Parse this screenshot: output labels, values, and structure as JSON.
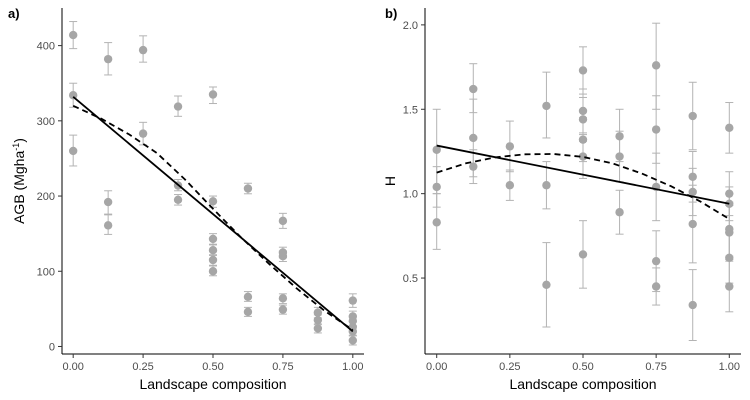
{
  "chart_data": [
    {
      "type": "scatter",
      "panel_label": "a)",
      "xlabel": "Landscape composition",
      "ylabel": "AGB (Mgha",
      "ylabel_sup": "-1",
      "ylabel_suffix": ")",
      "xlim": [
        -0.04,
        1.04
      ],
      "ylim": [
        -10,
        450
      ],
      "xticks": [
        0,
        0.25,
        0.5,
        0.75,
        1
      ],
      "xtick_labels": [
        "0.00",
        "0.25",
        "0.50",
        "0.75",
        "1.00"
      ],
      "yticks": [
        0,
        100,
        200,
        300,
        400
      ],
      "ytick_labels": [
        "0",
        "100",
        "200",
        "300",
        "400"
      ],
      "grid": false,
      "colors": {
        "points": "#a6a6a6",
        "errorbars": "#b3b3b3",
        "lines": "#000000"
      },
      "points": [
        {
          "x": 0.0,
          "y": 414,
          "lo": 396,
          "hi": 432
        },
        {
          "x": 0.0,
          "y": 334,
          "lo": 318,
          "hi": 350
        },
        {
          "x": 0.0,
          "y": 260,
          "lo": 240,
          "hi": 281
        },
        {
          "x": 0.125,
          "y": 382,
          "lo": 361,
          "hi": 404
        },
        {
          "x": 0.125,
          "y": 192,
          "lo": 175,
          "hi": 207
        },
        {
          "x": 0.125,
          "y": 161,
          "lo": 149,
          "hi": 176
        },
        {
          "x": 0.25,
          "y": 394,
          "lo": 378,
          "hi": 413
        },
        {
          "x": 0.25,
          "y": 283,
          "lo": 268,
          "hi": 298
        },
        {
          "x": 0.375,
          "y": 319,
          "lo": 306,
          "hi": 333
        },
        {
          "x": 0.375,
          "y": 214,
          "lo": 207,
          "hi": 222
        },
        {
          "x": 0.375,
          "y": 195,
          "lo": 188,
          "hi": 202
        },
        {
          "x": 0.5,
          "y": 335,
          "lo": 323,
          "hi": 345
        },
        {
          "x": 0.5,
          "y": 193,
          "lo": 185,
          "hi": 200
        },
        {
          "x": 0.5,
          "y": 143,
          "lo": 136,
          "hi": 150
        },
        {
          "x": 0.5,
          "y": 128,
          "lo": 121,
          "hi": 135
        },
        {
          "x": 0.5,
          "y": 115,
          "lo": 108,
          "hi": 122
        },
        {
          "x": 0.5,
          "y": 100,
          "lo": 94,
          "hi": 107
        },
        {
          "x": 0.625,
          "y": 210,
          "lo": 203,
          "hi": 217
        },
        {
          "x": 0.625,
          "y": 66,
          "lo": 60,
          "hi": 73
        },
        {
          "x": 0.625,
          "y": 46,
          "lo": 40,
          "hi": 52
        },
        {
          "x": 0.75,
          "y": 167,
          "lo": 157,
          "hi": 177
        },
        {
          "x": 0.75,
          "y": 125,
          "lo": 118,
          "hi": 132
        },
        {
          "x": 0.75,
          "y": 120,
          "lo": 113,
          "hi": 127
        },
        {
          "x": 0.75,
          "y": 64,
          "lo": 57,
          "hi": 70
        },
        {
          "x": 0.75,
          "y": 49,
          "lo": 43,
          "hi": 55
        },
        {
          "x": 0.875,
          "y": 45,
          "lo": 38,
          "hi": 52
        },
        {
          "x": 0.875,
          "y": 35,
          "lo": 29,
          "hi": 42
        },
        {
          "x": 0.875,
          "y": 24,
          "lo": 18,
          "hi": 30
        },
        {
          "x": 1.0,
          "y": 61,
          "lo": 52,
          "hi": 70
        },
        {
          "x": 1.0,
          "y": 40,
          "lo": 33,
          "hi": 47
        },
        {
          "x": 1.0,
          "y": 34,
          "lo": 27,
          "hi": 41
        },
        {
          "x": 1.0,
          "y": 26,
          "lo": 19,
          "hi": 33
        },
        {
          "x": 1.0,
          "y": 20,
          "lo": 14,
          "hi": 27
        },
        {
          "x": 1.0,
          "y": 8,
          "lo": 2,
          "hi": 15
        }
      ],
      "fit_linear": {
        "x": [
          0,
          1
        ],
        "y": [
          332,
          20
        ]
      },
      "fit_curve": {
        "x": [
          0,
          0.1,
          0.2,
          0.3,
          0.4,
          0.5,
          0.6,
          0.7,
          0.8,
          0.9,
          1.0
        ],
        "y": [
          320,
          303,
          282,
          257,
          222,
          183,
          145,
          110,
          77,
          47,
          22
        ]
      }
    },
    {
      "type": "scatter",
      "panel_label": "b)",
      "xlabel": "Landscape composition",
      "ylabel": "H",
      "xlim": [
        -0.04,
        1.04
      ],
      "ylim": [
        0.05,
        2.1
      ],
      "xticks": [
        0,
        0.25,
        0.5,
        0.75,
        1
      ],
      "xtick_labels": [
        "0.00",
        "0.25",
        "0.50",
        "0.75",
        "1.00"
      ],
      "yticks": [
        0.5,
        1.0,
        1.5,
        2.0
      ],
      "ytick_labels": [
        "0.5",
        "1.0",
        "1.5",
        "2.0"
      ],
      "grid": false,
      "colors": {
        "points": "#a6a6a6",
        "errorbars": "#b3b3b3",
        "lines": "#000000"
      },
      "points": [
        {
          "x": 0.0,
          "y": 1.26,
          "lo": 1.0,
          "hi": 1.5
        },
        {
          "x": 0.0,
          "y": 1.04,
          "lo": 0.92,
          "hi": 1.16
        },
        {
          "x": 0.0,
          "y": 0.83,
          "lo": 0.67,
          "hi": 1.0
        },
        {
          "x": 0.125,
          "y": 1.62,
          "lo": 1.48,
          "hi": 1.77
        },
        {
          "x": 0.125,
          "y": 1.33,
          "lo": 1.1,
          "hi": 1.56
        },
        {
          "x": 0.125,
          "y": 1.16,
          "lo": 1.06,
          "hi": 1.26
        },
        {
          "x": 0.25,
          "y": 1.28,
          "lo": 1.13,
          "hi": 1.43
        },
        {
          "x": 0.25,
          "y": 1.05,
          "lo": 0.96,
          "hi": 1.14
        },
        {
          "x": 0.375,
          "y": 1.52,
          "lo": 1.33,
          "hi": 1.72
        },
        {
          "x": 0.375,
          "y": 1.05,
          "lo": 0.91,
          "hi": 1.19
        },
        {
          "x": 0.375,
          "y": 0.46,
          "lo": 0.21,
          "hi": 0.71
        },
        {
          "x": 0.5,
          "y": 1.73,
          "lo": 1.59,
          "hi": 1.87
        },
        {
          "x": 0.5,
          "y": 1.49,
          "lo": 1.36,
          "hi": 1.62
        },
        {
          "x": 0.5,
          "y": 1.44,
          "lo": 1.31,
          "hi": 1.57
        },
        {
          "x": 0.5,
          "y": 1.32,
          "lo": 1.19,
          "hi": 1.45
        },
        {
          "x": 0.5,
          "y": 1.22,
          "lo": 1.09,
          "hi": 1.35
        },
        {
          "x": 0.5,
          "y": 0.64,
          "lo": 0.44,
          "hi": 0.84
        },
        {
          "x": 0.625,
          "y": 1.34,
          "lo": 1.19,
          "hi": 1.5
        },
        {
          "x": 0.625,
          "y": 1.22,
          "lo": 1.07,
          "hi": 1.37
        },
        {
          "x": 0.625,
          "y": 0.89,
          "lo": 0.76,
          "hi": 1.02
        },
        {
          "x": 0.75,
          "y": 1.76,
          "lo": 1.5,
          "hi": 2.01
        },
        {
          "x": 0.75,
          "y": 1.38,
          "lo": 1.18,
          "hi": 1.58
        },
        {
          "x": 0.75,
          "y": 1.04,
          "lo": 0.84,
          "hi": 1.24
        },
        {
          "x": 0.75,
          "y": 0.6,
          "lo": 0.42,
          "hi": 0.78
        },
        {
          "x": 0.75,
          "y": 0.45,
          "lo": 0.34,
          "hi": 0.56
        },
        {
          "x": 0.875,
          "y": 1.46,
          "lo": 1.26,
          "hi": 1.66
        },
        {
          "x": 0.875,
          "y": 1.1,
          "lo": 0.95,
          "hi": 1.25
        },
        {
          "x": 0.875,
          "y": 1.01,
          "lo": 0.87,
          "hi": 1.15
        },
        {
          "x": 0.875,
          "y": 0.82,
          "lo": 0.59,
          "hi": 1.05
        },
        {
          "x": 0.875,
          "y": 0.34,
          "lo": 0.13,
          "hi": 0.55
        },
        {
          "x": 1.0,
          "y": 1.39,
          "lo": 1.24,
          "hi": 1.54
        },
        {
          "x": 1.0,
          "y": 1.0,
          "lo": 0.87,
          "hi": 1.13
        },
        {
          "x": 1.0,
          "y": 0.94,
          "lo": 0.84,
          "hi": 1.04
        },
        {
          "x": 1.0,
          "y": 0.79,
          "lo": 0.63,
          "hi": 0.95
        },
        {
          "x": 1.0,
          "y": 0.77,
          "lo": 0.61,
          "hi": 0.93
        },
        {
          "x": 1.0,
          "y": 0.62,
          "lo": 0.47,
          "hi": 0.77
        },
        {
          "x": 1.0,
          "y": 0.45,
          "lo": 0.3,
          "hi": 0.6
        }
      ],
      "fit_linear": {
        "x": [
          0,
          1
        ],
        "y": [
          1.285,
          0.94
        ]
      },
      "fit_curve": {
        "x": [
          0,
          0.1,
          0.2,
          0.3,
          0.4,
          0.5,
          0.6,
          0.7,
          0.8,
          0.9,
          1.0
        ],
        "y": [
          1.125,
          1.18,
          1.215,
          1.233,
          1.235,
          1.218,
          1.18,
          1.12,
          1.045,
          0.955,
          0.85
        ]
      }
    }
  ]
}
